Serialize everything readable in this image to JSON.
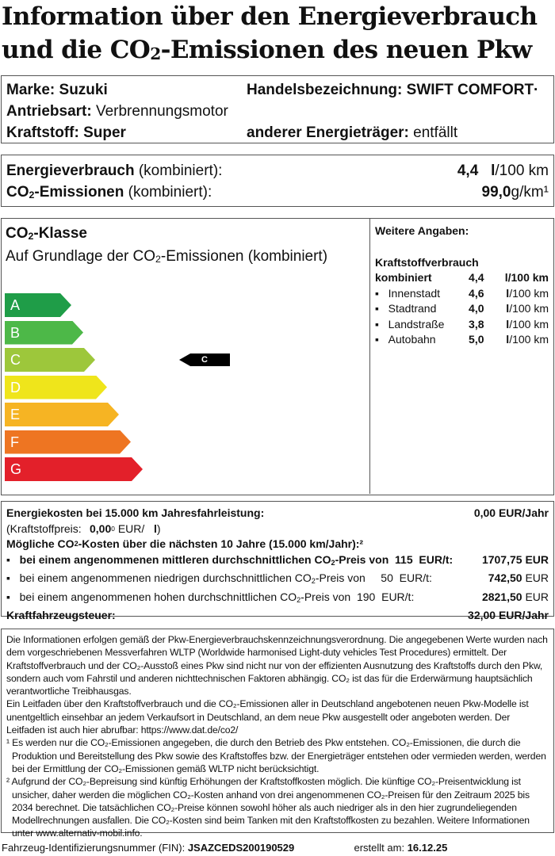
{
  "title": {
    "line1": "Information über den Energieverbrauch",
    "line2_a": "und die CO",
    "line2_sub": "2",
    "line2_b": "-Emissionen des neuen Pkw"
  },
  "vehicle": {
    "marke_label": "Marke:",
    "marke": "Suzuki",
    "handel_label": "Handelsbezeichnung:",
    "handel": "SWIFT COMFORT·",
    "antrieb_label": "Antriebsart:",
    "antrieb": "Verbrennungsmotor",
    "kraftstoff_label": "Kraftstoff:",
    "kraftstoff": "Super",
    "anderer_label": "anderer Energieträger:",
    "anderer": "entfällt"
  },
  "consumption": {
    "energy_label": "Energieverbrauch",
    "energy_suffix": "(kombiniert):",
    "energy_value": "4,4",
    "energy_unit_b": "l",
    "energy_unit": "/100 km",
    "co2_label_a": "CO",
    "co2_label_b": "-Emissionen",
    "co2_suffix": "(kombiniert):",
    "co2_value": "99,0",
    "co2_unit": "g/km¹"
  },
  "co2_class": {
    "title_a": "CO",
    "title_b": "-Klasse",
    "subtitle_a": "Auf Grundlage der CO",
    "subtitle_b": "-Emissionen (kombiniert)",
    "classes": [
      {
        "label": "A",
        "color": "#1f9d48"
      },
      {
        "label": "B",
        "color": "#4db848"
      },
      {
        "label": "C",
        "color": "#9dc73b"
      },
      {
        "label": "D",
        "color": "#efe51b"
      },
      {
        "label": "E",
        "color": "#f6b423"
      },
      {
        "label": "F",
        "color": "#ee7522"
      },
      {
        "label": "G",
        "color": "#e3202a"
      }
    ],
    "current": "C"
  },
  "weitere": {
    "title": "Weitere Angaben:",
    "heading": "Kraftstoffverbrauch",
    "kombiniert": {
      "label": "kombiniert",
      "value": "4,4",
      "unit": "l/100 km"
    },
    "items": [
      {
        "label": "Innenstadt",
        "value": "4,6",
        "unit_b": "l",
        "unit": "/100 km"
      },
      {
        "label": "Stadtrand",
        "value": "4,0",
        "unit_b": "l",
        "unit": "/100 km"
      },
      {
        "label": "Landstraße",
        "value": "3,8",
        "unit_b": "l",
        "unit": "/100 km"
      },
      {
        "label": "Autobahn",
        "value": "5,0",
        "unit_b": "l",
        "unit": "/100 km"
      }
    ]
  },
  "costs": {
    "energy_label": "Energiekosten bei 15.000 km Jahresfahrleistung:",
    "energy_value": "0,00 EUR/Jahr",
    "price_label": "(Kraftstoffpreis:",
    "price_value": "0,00",
    "price_sup": "0",
    "price_unit": "EUR/",
    "price_l": "l",
    "price_close": ")",
    "co2_heading_a": "Mögliche CO",
    "co2_heading_b": "-Kosten über die nächsten 10 Jahre (15.000 km/Jahr):²",
    "mid": {
      "a": "bei einem angenommenen mittleren durchschnittlichen CO",
      "b": "-Preis von",
      "price": "115",
      "unit": "EUR/t:",
      "value": "1707,75",
      "cur": "EUR"
    },
    "low": {
      "a": "bei einem angenommenen niedrigen durchschnittlichen CO",
      "b": "-Preis von",
      "price": "50",
      "unit": "EUR/t:",
      "value": "742,50",
      "cur": "EUR"
    },
    "high": {
      "a": "bei einem angenommenen hohen durchschnittlichen CO",
      "b": "-Preis von",
      "price": "190",
      "unit": "EUR/t:",
      "value": "2821,50",
      "cur": "EUR"
    },
    "tax_label": "Kraftfahrzeugsteuer:",
    "tax_value": "32,00 EUR/Jahr"
  },
  "info": {
    "p1": "Die Informationen erfolgen gemäß der Pkw-Energieverbrauchskennzeichnungsverordnung. Die angegebenen Werte wurden nach dem vorgeschriebenen Messverfahren WLTP (Worldwide harmonised Light-duty vehicles Test Procedures) ermittelt. Der Kraftstoffverbrauch und der CO₂-Ausstoß eines Pkw sind nicht nur von der effizienten Ausnutzung des Kraftstoffs durch den Pkw, sondern auch vom Fahrstil und anderen nichttechnischen Faktoren abhängig. CO₂ ist das für die Erderwärmung hauptsächlich verantwortliche Treibhausgas.",
    "p2": "Ein Leitfaden über den Kraftstoffverbrauch und die CO₂-Emissionen aller in Deutschland angebotenen neuen Pkw-Modelle ist unentgeltlich einsehbar an jedem Verkaufsort in Deutschland, an dem neue Pkw ausgestellt oder angeboten werden. Der Leitfaden ist auch hier abrufbar:   https://www.dat.de/co2/",
    "fn1": "¹ Es werden nur die CO₂-Emissionen angegeben, die durch den Betrieb des Pkw entstehen. CO₂-Emissionen, die durch die Produktion und Bereitstellung des Pkw sowie des Kraftstoffes bzw. der Energieträger entstehen oder vermieden werden, werden bei der Ermittlung der CO₂-Emissionen gemäß WLTP nicht berücksichtigt.",
    "fn2": "² Aufgrund der CO₂-Bepreisung sind künftig Erhöhungen der Kraftstoffkosten möglich. Die künftige CO₂-Preisentwicklung ist unsicher, daher werden die möglichen CO₂-Kosten anhand von drei angenommenen CO₂-Preisen für den Zeitraum  2025 bis  2034  berechnet. Die tatsächlichen CO₂-Preise können sowohl höher als auch niedriger als in den hier zugrundeliegenden Modellrechnungen ausfallen. Die CO₂-Kosten sind beim Tanken mit den Kraftstoffkosten zu bezahlen. Weitere Informationen unter www.alternativ-mobil.info."
  },
  "footer": {
    "fin_label": "Fahrzeug-Identifizierungsnummer (FIN):",
    "fin": "JSAZCEDS200190529",
    "created_label": "erstellt am:",
    "created": "16.12.25"
  }
}
